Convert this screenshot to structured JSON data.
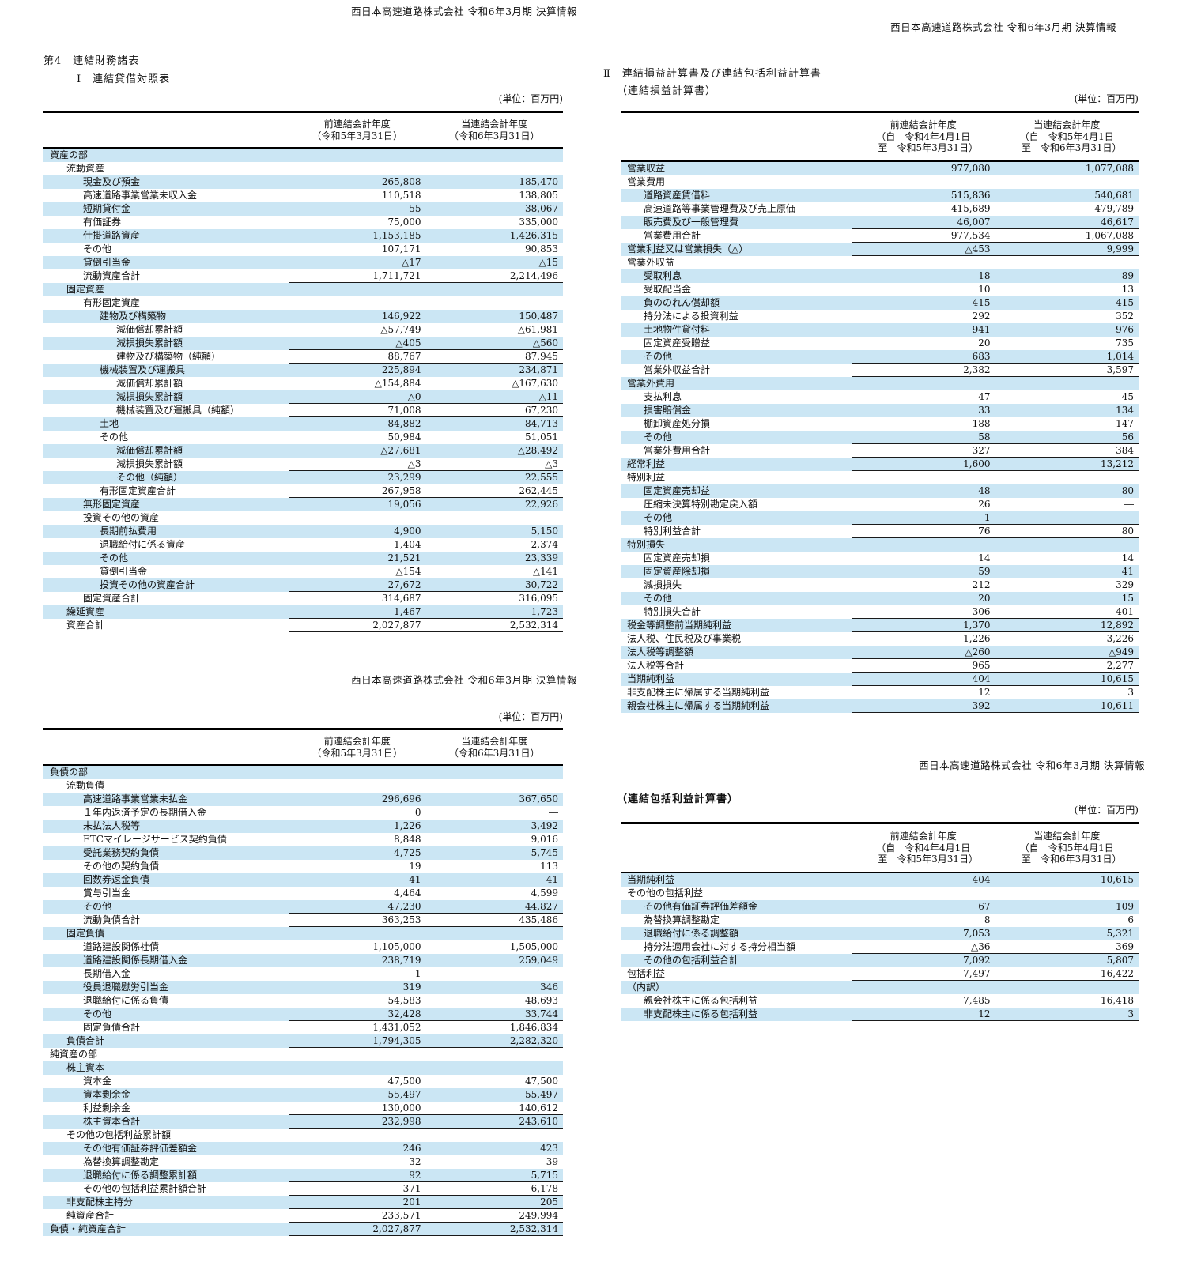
{
  "page_headers": {
    "top_left": "西日本高速道路株式会社 令和6年3月期 決算情報",
    "top_right": "西日本高速道路株式会社 令和6年3月期 決算情報",
    "mid_left": "西日本高速道路株式会社 令和6年3月期 決算情報",
    "mid_right": "西日本高速道路株式会社 令和6年3月期 決算情報"
  },
  "titles": {
    "chapter": "第4　連結財務諸表",
    "balance_sheet": "Ⅰ　連結貸借対照表",
    "income_statement": "Ⅱ　連結損益計算書及び連結包括利益計算書",
    "income_statement_sub": "（連結損益計算書）",
    "comprehensive_sub": "（連結包括利益計算書）",
    "unit": "(単位：百万円)"
  },
  "colors": {
    "row_highlight": "#cbe6f4",
    "rule": "#1a1a1a"
  },
  "tables": {
    "assets": {
      "col_headers": [
        [
          "前連結会計年度",
          "（令和5年3月31日）"
        ],
        [
          "当連結会計年度",
          "（令和6年3月31日）"
        ]
      ],
      "rows": [
        {
          "l": "資産の部",
          "i": 0,
          "a": "",
          "b": "",
          "r": false
        },
        {
          "l": "流動資産",
          "i": 1,
          "a": "",
          "b": "",
          "r": false
        },
        {
          "l": "現金及び預金",
          "i": 2,
          "a": "265,808",
          "b": "185,470",
          "r": false
        },
        {
          "l": "高速道路事業営業未収入金",
          "i": 2,
          "a": "110,518",
          "b": "138,805",
          "r": false
        },
        {
          "l": "短期貸付金",
          "i": 2,
          "a": "55",
          "b": "38,067",
          "r": false
        },
        {
          "l": "有価証券",
          "i": 2,
          "a": "75,000",
          "b": "335,000",
          "r": false
        },
        {
          "l": "仕掛道路資産",
          "i": 2,
          "a": "1,153,185",
          "b": "1,426,315",
          "r": false
        },
        {
          "l": "その他",
          "i": 2,
          "a": "107,171",
          "b": "90,853",
          "r": false
        },
        {
          "l": "貸倒引当金",
          "i": 2,
          "a": "△17",
          "b": "△15",
          "r": true
        },
        {
          "l": "流動資産合計",
          "i": 2,
          "a": "1,711,721",
          "b": "2,214,496",
          "r": true
        },
        {
          "l": "固定資産",
          "i": 1,
          "a": "",
          "b": "",
          "r": false
        },
        {
          "l": "有形固定資産",
          "i": 2,
          "a": "",
          "b": "",
          "r": false
        },
        {
          "l": "建物及び構築物",
          "i": 3,
          "a": "146,922",
          "b": "150,487",
          "r": false
        },
        {
          "l": "減価償却累計額",
          "i": 4,
          "a": "△57,749",
          "b": "△61,981",
          "r": false
        },
        {
          "l": "減損損失累計額",
          "i": 4,
          "a": "△405",
          "b": "△560",
          "r": true
        },
        {
          "l": "建物及び構築物（純額）",
          "i": 4,
          "a": "88,767",
          "b": "87,945",
          "r": true
        },
        {
          "l": "機械装置及び運搬具",
          "i": 3,
          "a": "225,894",
          "b": "234,871",
          "r": false
        },
        {
          "l": "減価償却累計額",
          "i": 4,
          "a": "△154,884",
          "b": "△167,630",
          "r": false
        },
        {
          "l": "減損損失累計額",
          "i": 4,
          "a": "△0",
          "b": "△11",
          "r": true
        },
        {
          "l": "機械装置及び運搬具（純額）",
          "i": 4,
          "a": "71,008",
          "b": "67,230",
          "r": true
        },
        {
          "l": "土地",
          "i": 3,
          "a": "84,882",
          "b": "84,713",
          "r": false
        },
        {
          "l": "その他",
          "i": 3,
          "a": "50,984",
          "b": "51,051",
          "r": false
        },
        {
          "l": "減価償却累計額",
          "i": 4,
          "a": "△27,681",
          "b": "△28,492",
          "r": false
        },
        {
          "l": "減損損失累計額",
          "i": 4,
          "a": "△3",
          "b": "△3",
          "r": true
        },
        {
          "l": "その他（純額）",
          "i": 4,
          "a": "23,299",
          "b": "22,555",
          "r": true
        },
        {
          "l": "有形固定資産合計",
          "i": 3,
          "a": "267,958",
          "b": "262,445",
          "r": true
        },
        {
          "l": "無形固定資産",
          "i": 2,
          "a": "19,056",
          "b": "22,926",
          "r": false
        },
        {
          "l": "投資その他の資産",
          "i": 2,
          "a": "",
          "b": "",
          "r": false
        },
        {
          "l": "長期前払費用",
          "i": 3,
          "a": "4,900",
          "b": "5,150",
          "r": false
        },
        {
          "l": "退職給付に係る資産",
          "i": 3,
          "a": "1,404",
          "b": "2,374",
          "r": false
        },
        {
          "l": "その他",
          "i": 3,
          "a": "21,521",
          "b": "23,339",
          "r": false
        },
        {
          "l": "貸倒引当金",
          "i": 3,
          "a": "△154",
          "b": "△141",
          "r": true
        },
        {
          "l": "投資その他の資産合計",
          "i": 3,
          "a": "27,672",
          "b": "30,722",
          "r": true
        },
        {
          "l": "固定資産合計",
          "i": 2,
          "a": "314,687",
          "b": "316,095",
          "r": true
        },
        {
          "l": "繰延資産",
          "i": 1,
          "a": "1,467",
          "b": "1,723",
          "r": true
        },
        {
          "l": "資産合計",
          "i": 1,
          "a": "2,027,877",
          "b": "2,532,314",
          "r": true
        }
      ]
    },
    "liabilities": {
      "col_headers": [
        [
          "前連結会計年度",
          "（令和5年3月31日）"
        ],
        [
          "当連結会計年度",
          "（令和6年3月31日）"
        ]
      ],
      "rows": [
        {
          "l": "負債の部",
          "i": 0,
          "a": "",
          "b": "",
          "r": false
        },
        {
          "l": "流動負債",
          "i": 1,
          "a": "",
          "b": "",
          "r": false
        },
        {
          "l": "高速道路事業営業未払金",
          "i": 2,
          "a": "296,696",
          "b": "367,650",
          "r": false
        },
        {
          "l": "１年内返済予定の長期借入金",
          "i": 2,
          "a": "0",
          "b": "―",
          "r": false
        },
        {
          "l": "未払法人税等",
          "i": 2,
          "a": "1,226",
          "b": "3,492",
          "r": false
        },
        {
          "l": "ETCマイレージサービス契約負債",
          "i": 2,
          "a": "8,848",
          "b": "9,016",
          "r": false
        },
        {
          "l": "受託業務契約負債",
          "i": 2,
          "a": "4,725",
          "b": "5,745",
          "r": false
        },
        {
          "l": "その他の契約負債",
          "i": 2,
          "a": "19",
          "b": "113",
          "r": false
        },
        {
          "l": "回数券返金負債",
          "i": 2,
          "a": "41",
          "b": "41",
          "r": false
        },
        {
          "l": "賞与引当金",
          "i": 2,
          "a": "4,464",
          "b": "4,599",
          "r": false
        },
        {
          "l": "その他",
          "i": 2,
          "a": "47,230",
          "b": "44,827",
          "r": true
        },
        {
          "l": "流動負債合計",
          "i": 2,
          "a": "363,253",
          "b": "435,486",
          "r": true
        },
        {
          "l": "固定負債",
          "i": 1,
          "a": "",
          "b": "",
          "r": false
        },
        {
          "l": "道路建設関係社債",
          "i": 2,
          "a": "1,105,000",
          "b": "1,505,000",
          "r": false
        },
        {
          "l": "道路建設関係長期借入金",
          "i": 2,
          "a": "238,719",
          "b": "259,049",
          "r": false
        },
        {
          "l": "長期借入金",
          "i": 2,
          "a": "1",
          "b": "―",
          "r": false
        },
        {
          "l": "役員退職慰労引当金",
          "i": 2,
          "a": "319",
          "b": "346",
          "r": false
        },
        {
          "l": "退職給付に係る負債",
          "i": 2,
          "a": "54,583",
          "b": "48,693",
          "r": false
        },
        {
          "l": "その他",
          "i": 2,
          "a": "32,428",
          "b": "33,744",
          "r": true
        },
        {
          "l": "固定負債合計",
          "i": 2,
          "a": "1,431,052",
          "b": "1,846,834",
          "r": true
        },
        {
          "l": "負債合計",
          "i": 1,
          "a": "1,794,305",
          "b": "2,282,320",
          "r": true
        },
        {
          "l": "純資産の部",
          "i": 0,
          "a": "",
          "b": "",
          "r": false
        },
        {
          "l": "株主資本",
          "i": 1,
          "a": "",
          "b": "",
          "r": false
        },
        {
          "l": "資本金",
          "i": 2,
          "a": "47,500",
          "b": "47,500",
          "r": false
        },
        {
          "l": "資本剰余金",
          "i": 2,
          "a": "55,497",
          "b": "55,497",
          "r": false
        },
        {
          "l": "利益剰余金",
          "i": 2,
          "a": "130,000",
          "b": "140,612",
          "r": true
        },
        {
          "l": "株主資本合計",
          "i": 2,
          "a": "232,998",
          "b": "243,610",
          "r": true
        },
        {
          "l": "その他の包括利益累計額",
          "i": 1,
          "a": "",
          "b": "",
          "r": false
        },
        {
          "l": "その他有価証券評価差額金",
          "i": 2,
          "a": "246",
          "b": "423",
          "r": false
        },
        {
          "l": "為替換算調整勘定",
          "i": 2,
          "a": "32",
          "b": "39",
          "r": false
        },
        {
          "l": "退職給付に係る調整累計額",
          "i": 2,
          "a": "92",
          "b": "5,715",
          "r": true
        },
        {
          "l": "その他の包括利益累計額合計",
          "i": 2,
          "a": "371",
          "b": "6,178",
          "r": true
        },
        {
          "l": "非支配株主持分",
          "i": 1,
          "a": "201",
          "b": "205",
          "r": true
        },
        {
          "l": "純資産合計",
          "i": 1,
          "a": "233,571",
          "b": "249,994",
          "r": true
        },
        {
          "l": "負債・純資産合計",
          "i": 0,
          "a": "2,027,877",
          "b": "2,532,314",
          "r": true
        }
      ]
    },
    "income": {
      "col_headers": [
        [
          "前連結会計年度",
          "（自　令和4年4月1日",
          "　至　令和5年3月31日）"
        ],
        [
          "当連結会計年度",
          "（自　令和5年4月1日",
          "　至　令和6年3月31日）"
        ]
      ],
      "rows": [
        {
          "l": "営業収益",
          "i": 0,
          "a": "977,080",
          "b": "1,077,088",
          "r": false
        },
        {
          "l": "営業費用",
          "i": 0,
          "a": "",
          "b": "",
          "r": false
        },
        {
          "l": "道路資産賃借料",
          "i": 1,
          "a": "515,836",
          "b": "540,681",
          "r": false
        },
        {
          "l": "高速道路等事業管理費及び売上原価",
          "i": 1,
          "a": "415,689",
          "b": "479,789",
          "r": false
        },
        {
          "l": "販売費及び一般管理費",
          "i": 1,
          "a": "46,007",
          "b": "46,617",
          "r": true
        },
        {
          "l": "営業費用合計",
          "i": 1,
          "a": "977,534",
          "b": "1,067,088",
          "r": true
        },
        {
          "l": "営業利益又は営業損失（△）",
          "i": 0,
          "a": "△453",
          "b": "9,999",
          "r": true
        },
        {
          "l": "営業外収益",
          "i": 0,
          "a": "",
          "b": "",
          "r": false
        },
        {
          "l": "受取利息",
          "i": 1,
          "a": "18",
          "b": "89",
          "r": false
        },
        {
          "l": "受取配当金",
          "i": 1,
          "a": "10",
          "b": "13",
          "r": false
        },
        {
          "l": "負ののれん償却額",
          "i": 1,
          "a": "415",
          "b": "415",
          "r": false
        },
        {
          "l": "持分法による投資利益",
          "i": 1,
          "a": "292",
          "b": "352",
          "r": false
        },
        {
          "l": "土地物件貸付料",
          "i": 1,
          "a": "941",
          "b": "976",
          "r": false
        },
        {
          "l": "固定資産受贈益",
          "i": 1,
          "a": "20",
          "b": "735",
          "r": false
        },
        {
          "l": "その他",
          "i": 1,
          "a": "683",
          "b": "1,014",
          "r": true
        },
        {
          "l": "営業外収益合計",
          "i": 1,
          "a": "2,382",
          "b": "3,597",
          "r": true
        },
        {
          "l": "営業外費用",
          "i": 0,
          "a": "",
          "b": "",
          "r": false
        },
        {
          "l": "支払利息",
          "i": 1,
          "a": "47",
          "b": "45",
          "r": false
        },
        {
          "l": "損害賠償金",
          "i": 1,
          "a": "33",
          "b": "134",
          "r": false
        },
        {
          "l": "棚卸資産処分損",
          "i": 1,
          "a": "188",
          "b": "147",
          "r": false
        },
        {
          "l": "その他",
          "i": 1,
          "a": "58",
          "b": "56",
          "r": true
        },
        {
          "l": "営業外費用合計",
          "i": 1,
          "a": "327",
          "b": "384",
          "r": true
        },
        {
          "l": "経常利益",
          "i": 0,
          "a": "1,600",
          "b": "13,212",
          "r": true
        },
        {
          "l": "特別利益",
          "i": 0,
          "a": "",
          "b": "",
          "r": false
        },
        {
          "l": "固定資産売却益",
          "i": 1,
          "a": "48",
          "b": "80",
          "r": false
        },
        {
          "l": "圧縮未決算特別勘定戻入額",
          "i": 1,
          "a": "26",
          "b": "―",
          "r": false
        },
        {
          "l": "その他",
          "i": 1,
          "a": "1",
          "b": "―",
          "r": true
        },
        {
          "l": "特別利益合計",
          "i": 1,
          "a": "76",
          "b": "80",
          "r": true
        },
        {
          "l": "特別損失",
          "i": 0,
          "a": "",
          "b": "",
          "r": false
        },
        {
          "l": "固定資産売却損",
          "i": 1,
          "a": "14",
          "b": "14",
          "r": false
        },
        {
          "l": "固定資産除却損",
          "i": 1,
          "a": "59",
          "b": "41",
          "r": false
        },
        {
          "l": "減損損失",
          "i": 1,
          "a": "212",
          "b": "329",
          "r": false
        },
        {
          "l": "その他",
          "i": 1,
          "a": "20",
          "b": "15",
          "r": true
        },
        {
          "l": "特別損失合計",
          "i": 1,
          "a": "306",
          "b": "401",
          "r": true
        },
        {
          "l": "税金等調整前当期純利益",
          "i": 0,
          "a": "1,370",
          "b": "12,892",
          "r": true
        },
        {
          "l": "法人税、住民税及び事業税",
          "i": 0,
          "a": "1,226",
          "b": "3,226",
          "r": false
        },
        {
          "l": "法人税等調整額",
          "i": 0,
          "a": "△260",
          "b": "△949",
          "r": true
        },
        {
          "l": "法人税等合計",
          "i": 0,
          "a": "965",
          "b": "2,277",
          "r": true
        },
        {
          "l": "当期純利益",
          "i": 0,
          "a": "404",
          "b": "10,615",
          "r": true
        },
        {
          "l": "非支配株主に帰属する当期純利益",
          "i": 0,
          "a": "12",
          "b": "3",
          "r": true
        },
        {
          "l": "親会社株主に帰属する当期純利益",
          "i": 0,
          "a": "392",
          "b": "10,611",
          "r": true
        }
      ]
    },
    "comprehensive": {
      "col_headers": [
        [
          "前連結会計年度",
          "（自　令和4年4月1日",
          "　至　令和5年3月31日）"
        ],
        [
          "当連結会計年度",
          "（自　令和5年4月1日",
          "　至　令和6年3月31日）"
        ]
      ],
      "rows": [
        {
          "l": "当期純利益",
          "i": 0,
          "a": "404",
          "b": "10,615",
          "r": false
        },
        {
          "l": "その他の包括利益",
          "i": 0,
          "a": "",
          "b": "",
          "r": false
        },
        {
          "l": "その他有価証券評価差額金",
          "i": 1,
          "a": "67",
          "b": "109",
          "r": false
        },
        {
          "l": "為替換算調整勘定",
          "i": 1,
          "a": "8",
          "b": "6",
          "r": false
        },
        {
          "l": "退職給付に係る調整額",
          "i": 1,
          "a": "7,053",
          "b": "5,321",
          "r": false
        },
        {
          "l": "持分法適用会社に対する持分相当額",
          "i": 1,
          "a": "△36",
          "b": "369",
          "r": true
        },
        {
          "l": "その他の包括利益合計",
          "i": 1,
          "a": "7,092",
          "b": "5,807",
          "r": true
        },
        {
          "l": "包括利益",
          "i": 0,
          "a": "7,497",
          "b": "16,422",
          "r": true
        },
        {
          "l": "（内訳）",
          "i": 0,
          "a": "",
          "b": "",
          "r": false
        },
        {
          "l": "親会社株主に係る包括利益",
          "i": 1,
          "a": "7,485",
          "b": "16,418",
          "r": false
        },
        {
          "l": "非支配株主に係る包括利益",
          "i": 1,
          "a": "12",
          "b": "3",
          "r": true
        }
      ]
    }
  }
}
